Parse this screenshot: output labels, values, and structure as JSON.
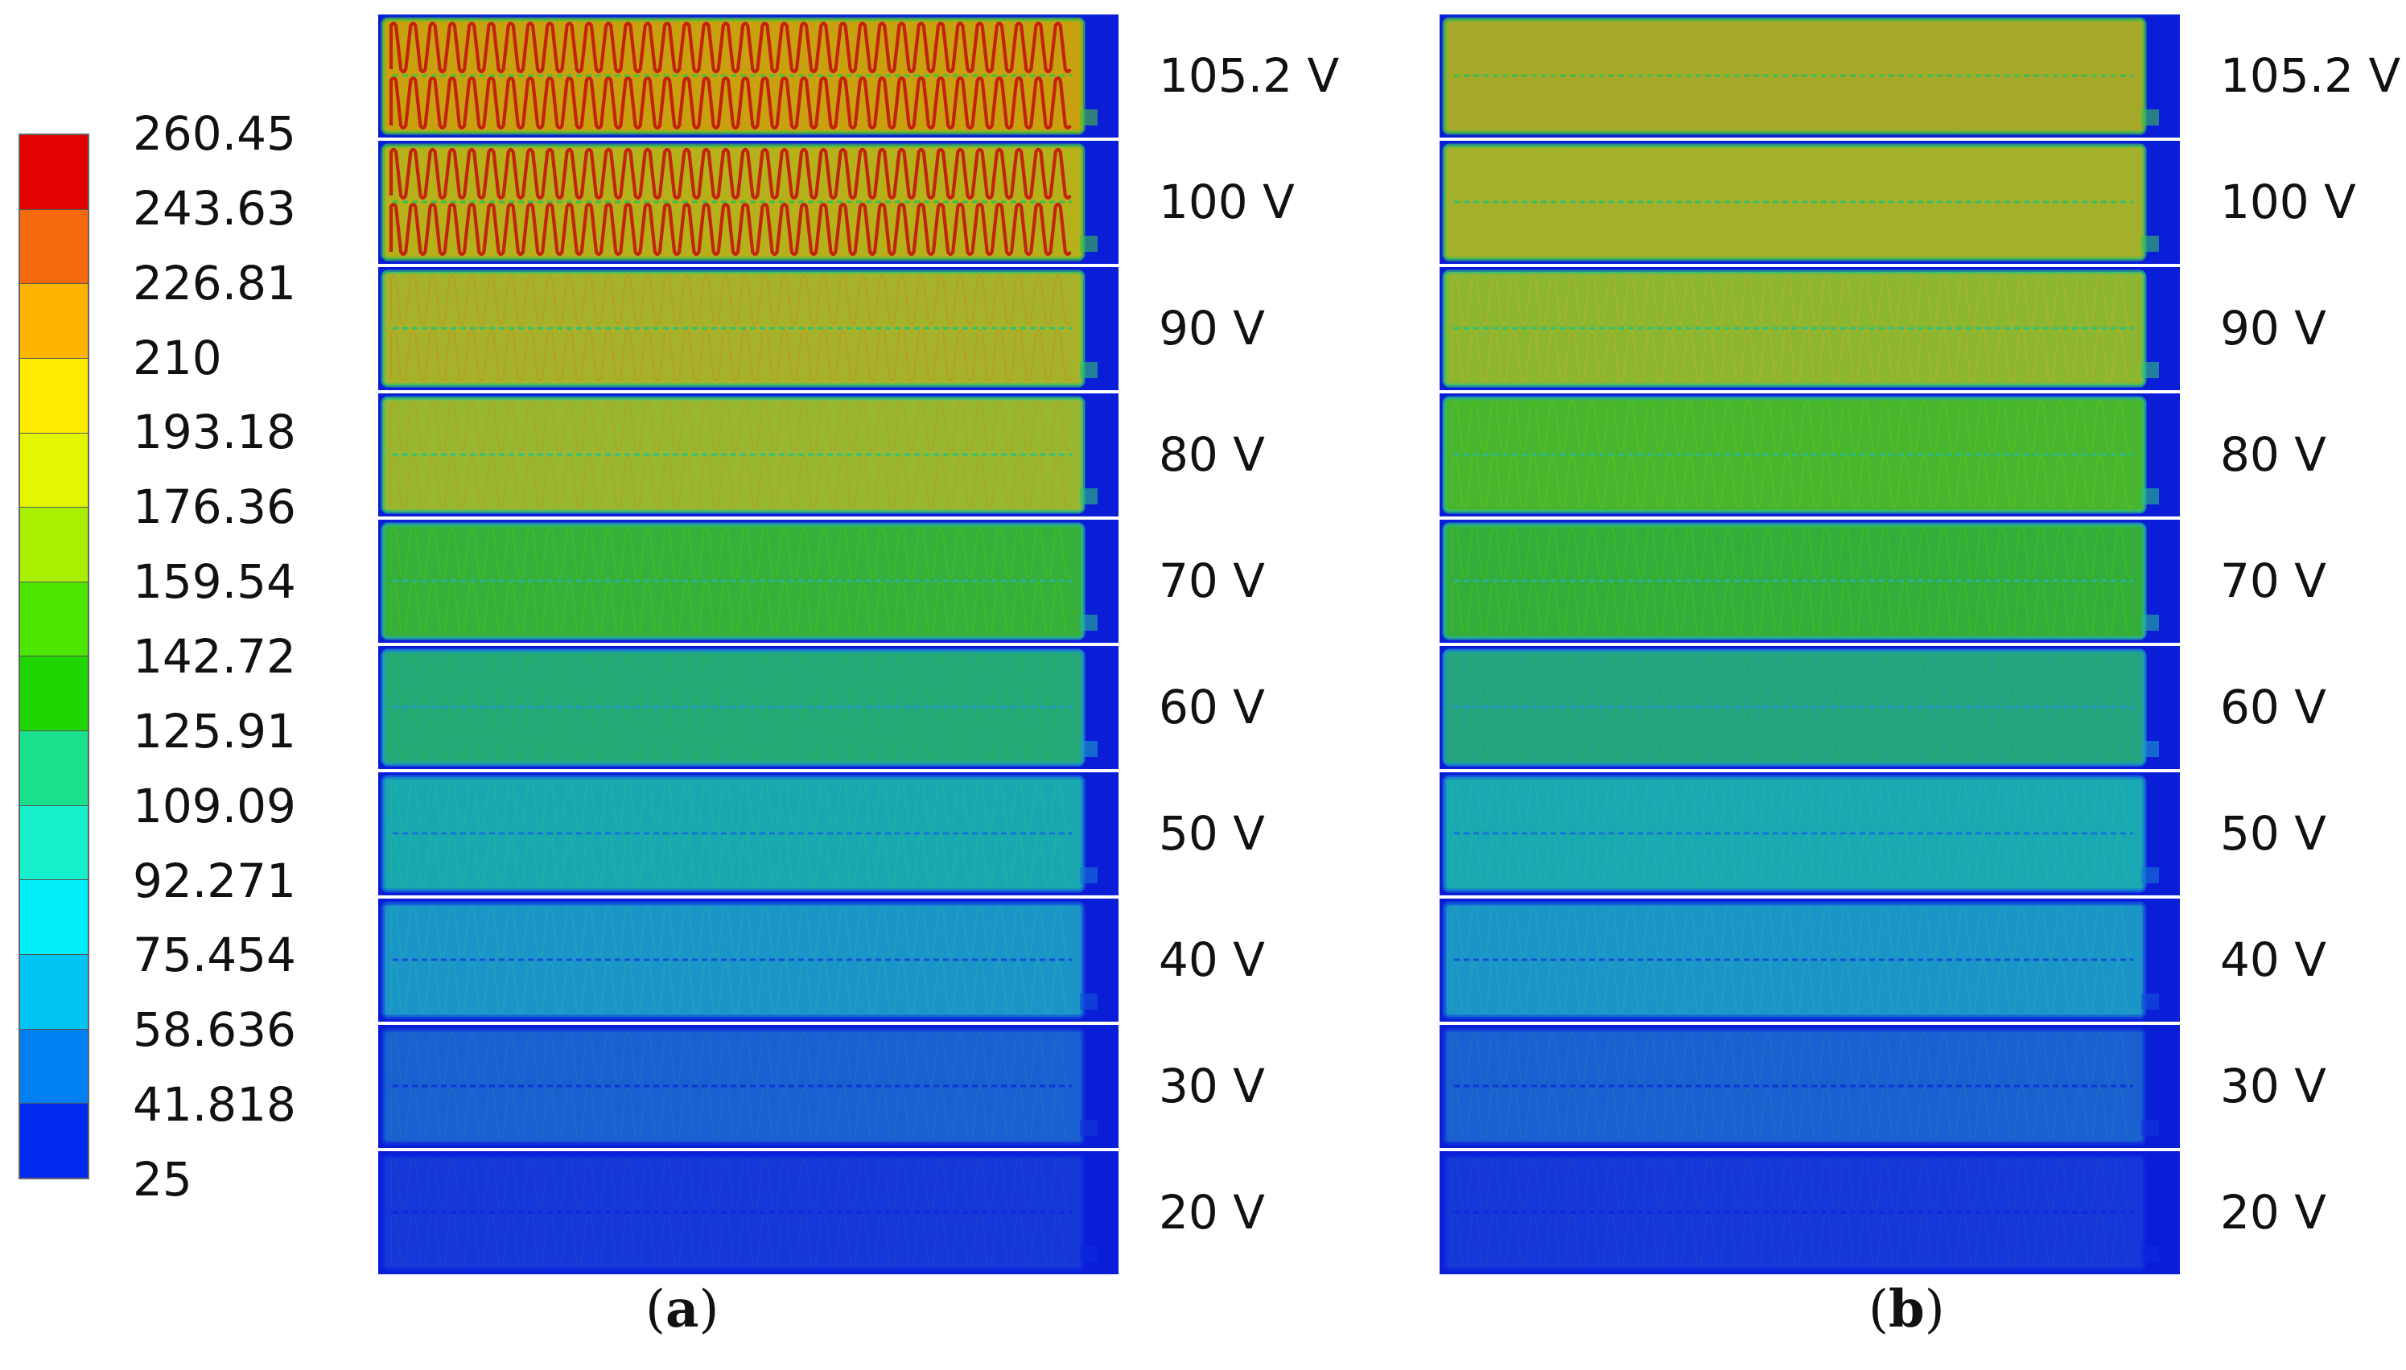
{
  "legend": {
    "colors": [
      "#e30000",
      "#f46a0c",
      "#ffb400",
      "#ffec00",
      "#e4f500",
      "#a8f000",
      "#4ce600",
      "#1fd600",
      "#19e08c",
      "#16f0cd",
      "#00eef7",
      "#00c4f2",
      "#0080f0",
      "#0028ee"
    ],
    "labels": [
      "260.45",
      "243.63",
      "226.81",
      "210",
      "193.18",
      "176.36",
      "159.54",
      "142.72",
      "125.91",
      "109.09",
      "92.271",
      "75.454",
      "58.636",
      "41.818",
      "25"
    ]
  },
  "panel_a": {
    "caption": "a",
    "strips": [
      {
        "voltage": "105.2 V",
        "fill": "#bb3a10",
        "bg": "#c8a010",
        "line": "#49c23b",
        "pattern": "hot"
      },
      {
        "voltage": "100 V",
        "fill": "#bf6a12",
        "bg": "#b6b01a",
        "line": "#3cbe50",
        "pattern": "hot"
      },
      {
        "voltage": "90 V",
        "fill": "#b3a025",
        "bg": "#a6b32a",
        "line": "#30c070",
        "pattern": "warm"
      },
      {
        "voltage": "80 V",
        "fill": "#a6aa2a",
        "bg": "#98b62f",
        "line": "#2fc07a",
        "pattern": "warm"
      },
      {
        "voltage": "70 V",
        "fill": "#3fb82a",
        "bg": "#36b03a",
        "line": "#27b39c",
        "pattern": "mid"
      },
      {
        "voltage": "60 V",
        "fill": "#22ae66",
        "bg": "#24a878",
        "line": "#1c9ac6",
        "pattern": "mid"
      },
      {
        "voltage": "50 V",
        "fill": "#19b1a4",
        "bg": "#1aa8b0",
        "line": "#1674d6",
        "pattern": "cool"
      },
      {
        "voltage": "40 V",
        "fill": "#1d9fbf",
        "bg": "#1b95c8",
        "line": "#1352d8",
        "pattern": "cool"
      },
      {
        "voltage": "30 V",
        "fill": "#1a6ac8",
        "bg": "#1a60d0",
        "line": "#1036d8",
        "pattern": "cold"
      },
      {
        "voltage": "20 V",
        "fill": "#1740d2",
        "bg": "#1638d8",
        "line": "#0c28e0",
        "pattern": "cold"
      }
    ]
  },
  "panel_b": {
    "caption": "b",
    "strips": [
      {
        "voltage": "105.2 V",
        "fill": "#b2a326",
        "bg": "#a6a82a",
        "line": "#3cbe50",
        "pattern": "flat"
      },
      {
        "voltage": "100 V",
        "fill": "#acae26",
        "bg": "#a2b02c",
        "line": "#37bf60",
        "pattern": "warm"
      },
      {
        "voltage": "90 V",
        "fill": "#a2b42c",
        "bg": "#8cb62f",
        "line": "#2fc07a",
        "pattern": "warm"
      },
      {
        "voltage": "80 V",
        "fill": "#55bc28",
        "bg": "#48b52e",
        "line": "#2bbb88",
        "pattern": "mid"
      },
      {
        "voltage": "70 V",
        "fill": "#3cb62c",
        "bg": "#34ad3a",
        "line": "#27b39c",
        "pattern": "mid"
      },
      {
        "voltage": "60 V",
        "fill": "#24aa74",
        "bg": "#25a280",
        "line": "#1c9ac6",
        "pattern": "mid"
      },
      {
        "voltage": "50 V",
        "fill": "#1bb0ac",
        "bg": "#1aa8b2",
        "line": "#1674d6",
        "pattern": "cool"
      },
      {
        "voltage": "40 V",
        "fill": "#1c9ec0",
        "bg": "#1b95c8",
        "line": "#1352d8",
        "pattern": "cool"
      },
      {
        "voltage": "30 V",
        "fill": "#1a6bc8",
        "bg": "#1a60d0",
        "line": "#1036d8",
        "pattern": "cold"
      },
      {
        "voltage": "20 V",
        "fill": "#1740d2",
        "bg": "#1638d8",
        "line": "#0c28e0",
        "pattern": "cold"
      }
    ]
  }
}
